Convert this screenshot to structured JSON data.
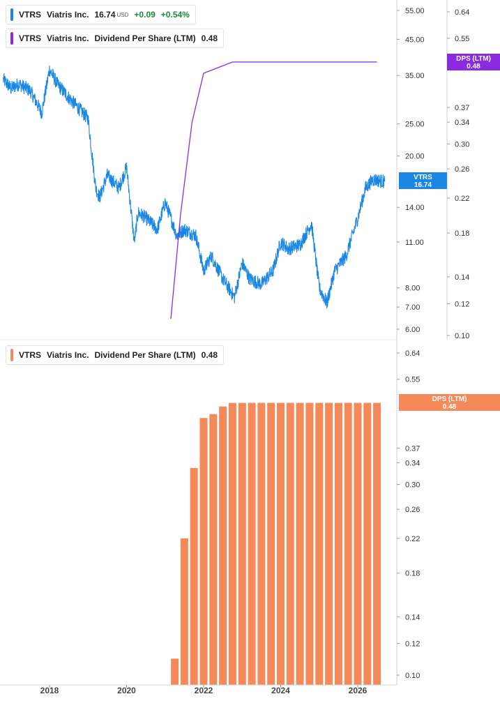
{
  "legend_price": {
    "symbol": "VTRS",
    "name": "Viatris Inc.",
    "price": "16.74",
    "currency": "USD",
    "change": "+0.09",
    "change_pct": "+0.54%",
    "color": "#1a86e6"
  },
  "legend_dps_top": {
    "symbol": "VTRS",
    "name": "Viatris Inc.",
    "metric": "Dividend Per Share (LTM)",
    "value": "0.48",
    "color": "#8a2be2"
  },
  "legend_dps_bottom": {
    "symbol": "VTRS",
    "name": "Viatris Inc.",
    "metric": "Dividend Per Share (LTM)",
    "value": "0.48",
    "color": "#f5895a"
  },
  "badges": {
    "price": {
      "line1": "VTRS",
      "line2": "16.74",
      "color": "#1a86e6"
    },
    "dps_top": {
      "line1": "DPS (LTM)",
      "line2": "0.48",
      "color": "#8a2be2"
    },
    "dps_bottom": {
      "line1": "DPS (LTM)",
      "line2": "0.48",
      "color": "#f5895a"
    }
  },
  "chart_data": [
    {
      "type": "line",
      "scale": "log",
      "series": [
        {
          "name": "VTRS",
          "color": "#1a86e6",
          "x": [
            2016.8,
            2017.0,
            2017.2,
            2017.5,
            2017.8,
            2018.0,
            2018.2,
            2018.5,
            2018.8,
            2019.0,
            2019.2,
            2019.3,
            2019.5,
            2019.8,
            2020.0,
            2020.2,
            2020.3,
            2020.5,
            2020.8,
            2021.0,
            2021.2,
            2021.3,
            2021.5,
            2021.8,
            2022.0,
            2022.2,
            2022.5,
            2022.8,
            2023.0,
            2023.2,
            2023.5,
            2023.8,
            2024.0,
            2024.2,
            2024.5,
            2024.8,
            2025.0,
            2025.2,
            2025.4,
            2025.7,
            2026.0,
            2026.2,
            2026.4,
            2026.7
          ],
          "y": [
            34.0,
            32.0,
            33.0,
            31.5,
            27.0,
            36.5,
            33.0,
            30.0,
            27.5,
            26.0,
            16.0,
            15.0,
            17.5,
            16.0,
            18.5,
            11.0,
            13.5,
            13.0,
            12.0,
            14.5,
            12.5,
            11.5,
            12.0,
            11.5,
            9.0,
            10.0,
            8.5,
            7.5,
            9.5,
            8.5,
            8.2,
            9.0,
            11.0,
            10.5,
            10.8,
            12.5,
            8.0,
            7.2,
            9.0,
            10.0,
            13.0,
            16.0,
            17.0,
            16.74
          ]
        },
        {
          "name": "Dividend Per Share (LTM)",
          "color": "#8a2be2",
          "x": [
            2021.15,
            2021.4,
            2021.7,
            2022.0,
            2022.75,
            2026.5
          ],
          "y": [
            0.11,
            0.2,
            0.34,
            0.45,
            0.48,
            0.48
          ]
        }
      ],
      "left_axis_ticks": [
        55.0,
        45.0,
        35.0,
        25.0,
        20.0,
        14.0,
        11.0,
        8.0,
        7.0,
        6.0
      ],
      "right_axis_ticks": [
        0.64,
        0.55,
        0.37,
        0.34,
        0.3,
        0.26,
        0.22,
        0.18,
        0.14,
        0.12,
        0.1
      ]
    },
    {
      "type": "bar",
      "scale": "log",
      "series": [
        {
          "name": "Dividend Per Share (LTM)",
          "color": "#f5895a",
          "x": [
            2021.25,
            2021.5,
            2021.75,
            2022.0,
            2022.25,
            2022.5,
            2022.75,
            2023.0,
            2023.25,
            2023.5,
            2023.75,
            2024.0,
            2024.25,
            2024.5,
            2024.75,
            2025.0,
            2025.25,
            2025.5,
            2025.75,
            2026.0,
            2026.25,
            2026.5
          ],
          "y": [
            0.11,
            0.22,
            0.33,
            0.44,
            0.45,
            0.47,
            0.48,
            0.48,
            0.48,
            0.48,
            0.48,
            0.48,
            0.48,
            0.48,
            0.48,
            0.48,
            0.48,
            0.48,
            0.48,
            0.48,
            0.48,
            0.48
          ]
        }
      ],
      "axis_ticks": [
        0.64,
        0.55,
        0.37,
        0.34,
        0.3,
        0.26,
        0.22,
        0.18,
        0.14,
        0.12,
        0.1
      ]
    }
  ],
  "x_axis_labels": [
    {
      "year": 2018,
      "label": "2018"
    },
    {
      "year": 2020,
      "label": "2020"
    },
    {
      "year": 2022,
      "label": "2022"
    },
    {
      "year": 2024,
      "label": "2024"
    },
    {
      "year": 2026,
      "label": "2026"
    }
  ]
}
